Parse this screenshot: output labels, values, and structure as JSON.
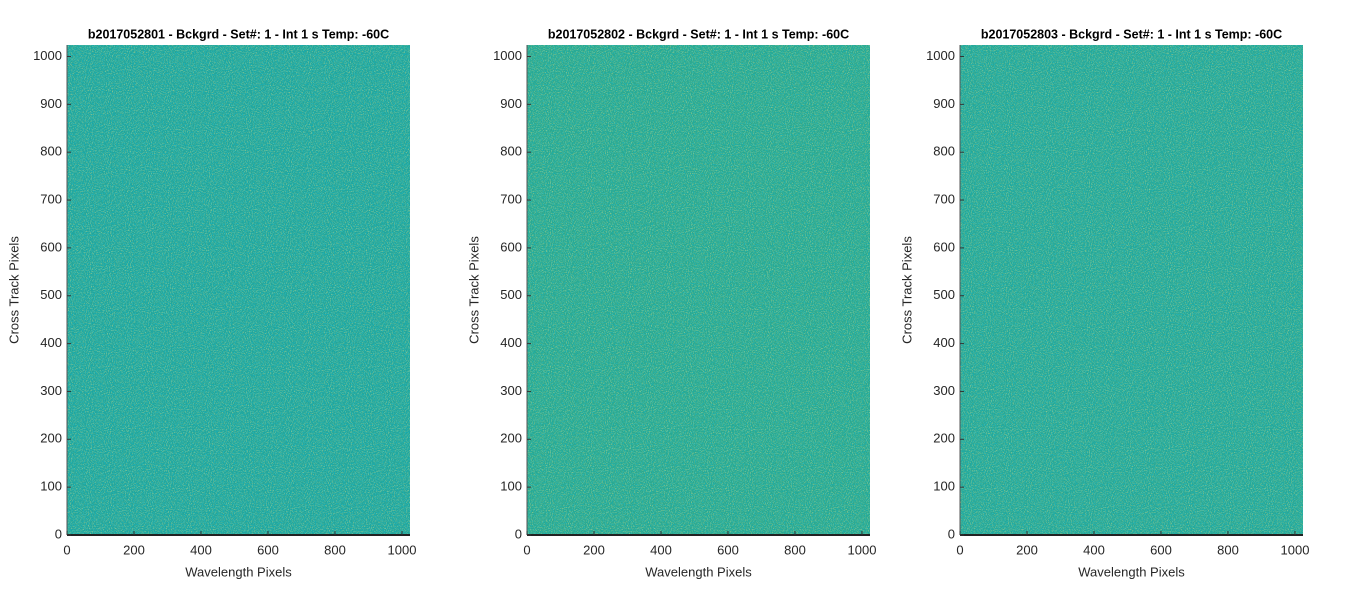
{
  "chart_data": [
    {
      "type": "image",
      "title": "b2017052801 - Bckgrd - Set#: 1 - Int 1 s Temp: -60C",
      "x_label": "Wavelength Pixels",
      "y_label": "Cross Track Pixels",
      "color": "#22a59a",
      "xlim": [
        0,
        1024
      ],
      "ylim": [
        0,
        1024
      ],
      "xticks": [
        0,
        200,
        400,
        600,
        800,
        1000
      ],
      "yticks": [
        0,
        100,
        200,
        300,
        400,
        500,
        600,
        700,
        800,
        900,
        1000
      ]
    },
    {
      "type": "image",
      "title": "b2017052802 - Bckgrd - Set#: 1 - Int 1 s Temp: -60C",
      "x_label": "Wavelength Pixels",
      "y_label": "Cross Track Pixels",
      "color": "#2aa88f",
      "xlim": [
        0,
        1024
      ],
      "ylim": [
        0,
        1024
      ],
      "xticks": [
        0,
        200,
        400,
        600,
        800,
        1000
      ],
      "yticks": [
        0,
        100,
        200,
        300,
        400,
        500,
        600,
        700,
        800,
        900,
        1000
      ]
    },
    {
      "type": "image",
      "title": "b2017052803 - Bckgrd - Set#: 1 - Int 1 s Temp: -60C",
      "x_label": "Wavelength Pixels",
      "y_label": "Cross Track Pixels",
      "color": "#27a795",
      "xlim": [
        0,
        1024
      ],
      "ylim": [
        0,
        1024
      ],
      "xticks": [
        0,
        200,
        400,
        600,
        800,
        1000
      ],
      "yticks": [
        0,
        100,
        200,
        300,
        400,
        500,
        600,
        700,
        800,
        900,
        1000
      ]
    }
  ]
}
